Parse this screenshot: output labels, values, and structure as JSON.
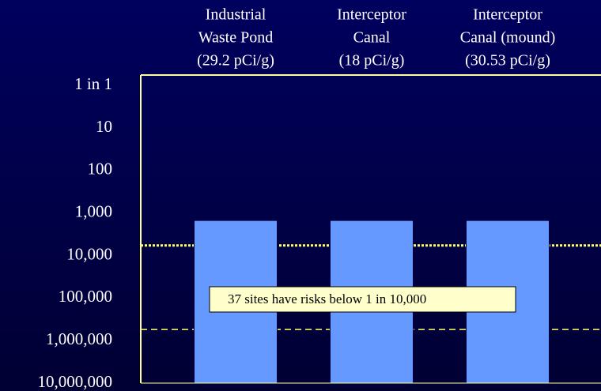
{
  "chart_data": {
    "type": "bar",
    "categories": [
      [
        "Industrial",
        "Waste Pond",
        "(29.2 pCi/g)"
      ],
      [
        "Interceptor",
        "Canal",
        "(18 pCi/g)"
      ],
      [
        "Interceptor",
        "Canal (mound)",
        "(30.53 pCi/g)"
      ]
    ],
    "values": [
      1500,
      1500,
      1500
    ],
    "color": "#6699ff",
    "log_scale": true,
    "ylim": [
      10000000,
      0.57
    ],
    "yticks": [
      {
        "value": 1,
        "label": "1 in 1"
      },
      10,
      100,
      {
        "value": 1000,
        "label": "1,000"
      },
      {
        "value": 10000,
        "label": "10,000"
      },
      {
        "value": 100000,
        "label": "100,000"
      },
      {
        "value": 1000000,
        "label": "1,000,000"
      },
      {
        "value": 10000000,
        "label": "10,000,000"
      }
    ],
    "reference_lines": [
      {
        "value": 5800,
        "style": "dotted",
        "color": "#ffff66"
      },
      {
        "value": 550000,
        "style": "dashed",
        "color": "#ffff66"
      }
    ],
    "annotation": "37 sites have risks below 1 in 10,000"
  }
}
